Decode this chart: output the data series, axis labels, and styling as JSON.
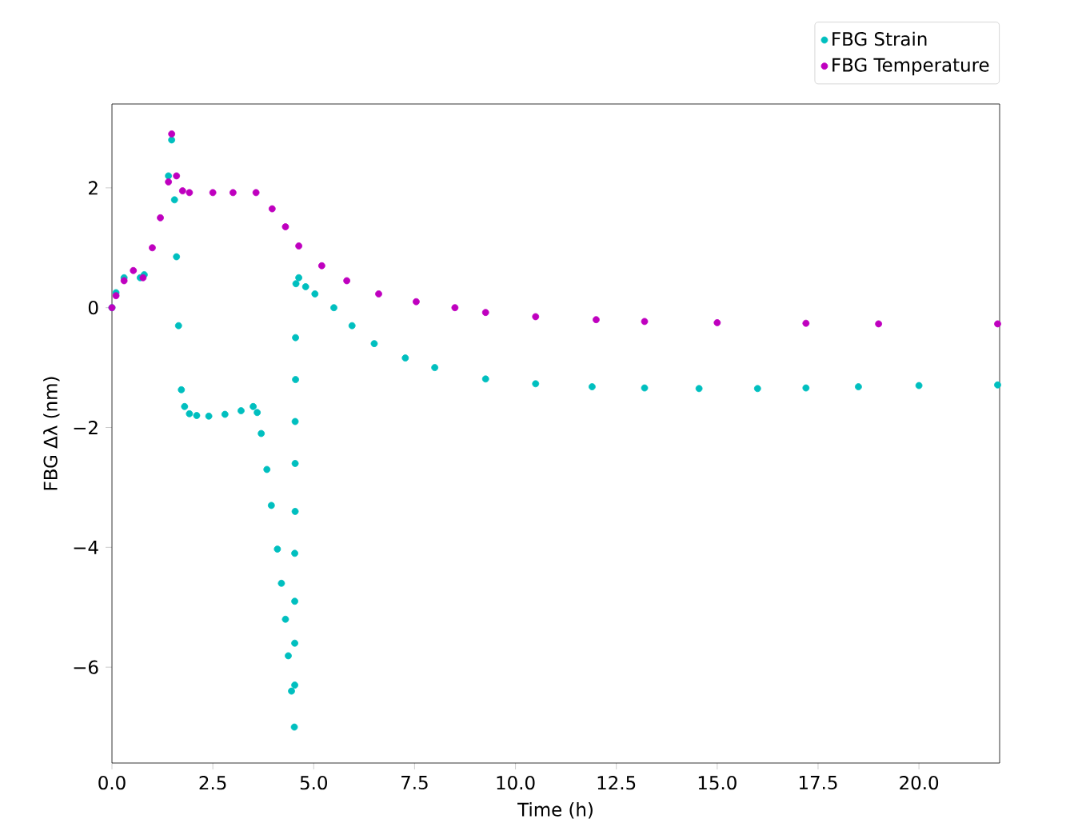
{
  "chart_data": {
    "type": "scatter",
    "xlabel": "Time (h)",
    "ylabel": "FBG Δλ (nm)",
    "marker": "circle",
    "legend": "top right",
    "xlim": [
      0,
      22
    ],
    "ylim": [
      -7.6,
      3.4
    ],
    "xticks": [
      {
        "value": 0,
        "label": "0.0"
      },
      {
        "value": 2.5,
        "label": "2.5"
      },
      {
        "value": 5,
        "label": "5.0"
      },
      {
        "value": 7.5,
        "label": "7.5"
      },
      {
        "value": 10,
        "label": "10.0"
      },
      {
        "value": 12.5,
        "label": "12.5"
      },
      {
        "value": 15,
        "label": "15.0"
      },
      {
        "value": 17.5,
        "label": "17.5"
      },
      {
        "value": 20,
        "label": "20.0"
      }
    ],
    "yticks": [
      {
        "value": -6,
        "label": "−6"
      },
      {
        "value": -4,
        "label": "−4"
      },
      {
        "value": -2,
        "label": "−2"
      },
      0,
      2
    ],
    "series": [
      {
        "name": "FBG Strain",
        "color": "#00bfbf",
        "x": [
          0,
          0.1,
          0.3,
          0.5,
          0.7,
          0.8,
          1.0,
          1.2,
          1.4,
          1.48,
          1.55,
          1.6,
          1.65,
          1.72,
          1.8,
          1.92,
          2.1,
          2.4,
          2.8,
          3.2,
          3.5,
          3.6,
          3.7,
          3.84,
          3.95,
          4.1,
          4.2,
          4.3,
          4.37,
          4.45,
          4.52,
          4.53,
          4.53,
          4.53,
          4.53,
          4.54,
          4.54,
          4.54,
          4.55,
          4.55,
          4.56,
          4.63,
          4.8,
          5.03,
          5.5,
          5.95,
          6.5,
          7.27,
          8.0,
          9.26,
          10.5,
          11.9,
          13.2,
          14.55,
          16,
          17.2,
          18.5,
          20,
          21.95
        ],
        "values": [
          0,
          0.25,
          0.5,
          null,
          0.5,
          0.55,
          null,
          null,
          2.2,
          2.8,
          1.8,
          0.85,
          -0.3,
          -1.37,
          -1.65,
          -1.77,
          -1.8,
          -1.81,
          -1.78,
          -1.72,
          -1.65,
          -1.75,
          -2.1,
          -2.7,
          -3.3,
          -4.03,
          -4.6,
          -5.2,
          -5.81,
          -6.4,
          -7.0,
          -6.3,
          -5.6,
          -4.9,
          -4.1,
          -3.4,
          -2.6,
          -1.9,
          -1.2,
          -0.5,
          0.4,
          0.5,
          0.35,
          0.23,
          0,
          -0.3,
          -0.6,
          -0.84,
          -1.0,
          -1.19,
          -1.27,
          -1.32,
          -1.34,
          -1.35,
          -1.35,
          -1.34,
          -1.32,
          -1.3,
          -1.29
        ]
      },
      {
        "name": "FBG Temperature",
        "color": "#bf00bf",
        "x": [
          0,
          0.1,
          0.3,
          0.53,
          0.77,
          1.0,
          1.2,
          1.4,
          1.48,
          1.6,
          1.75,
          1.92,
          2.5,
          3.0,
          3.57,
          3.97,
          4.3,
          4.63,
          5.2,
          5.82,
          6.61,
          7.54,
          8.5,
          9.26,
          10.5,
          12,
          13.2,
          15,
          17.2,
          19,
          21.95
        ],
        "values": [
          0,
          0.2,
          0.45,
          0.62,
          0.5,
          1.0,
          1.5,
          2.1,
          2.9,
          2.2,
          1.95,
          1.92,
          1.92,
          1.92,
          1.92,
          1.65,
          1.35,
          1.03,
          0.7,
          0.45,
          0.23,
          0.1,
          0,
          -0.08,
          -0.15,
          -0.2,
          -0.23,
          -0.25,
          -0.26,
          -0.27,
          -0.27
        ]
      }
    ]
  }
}
